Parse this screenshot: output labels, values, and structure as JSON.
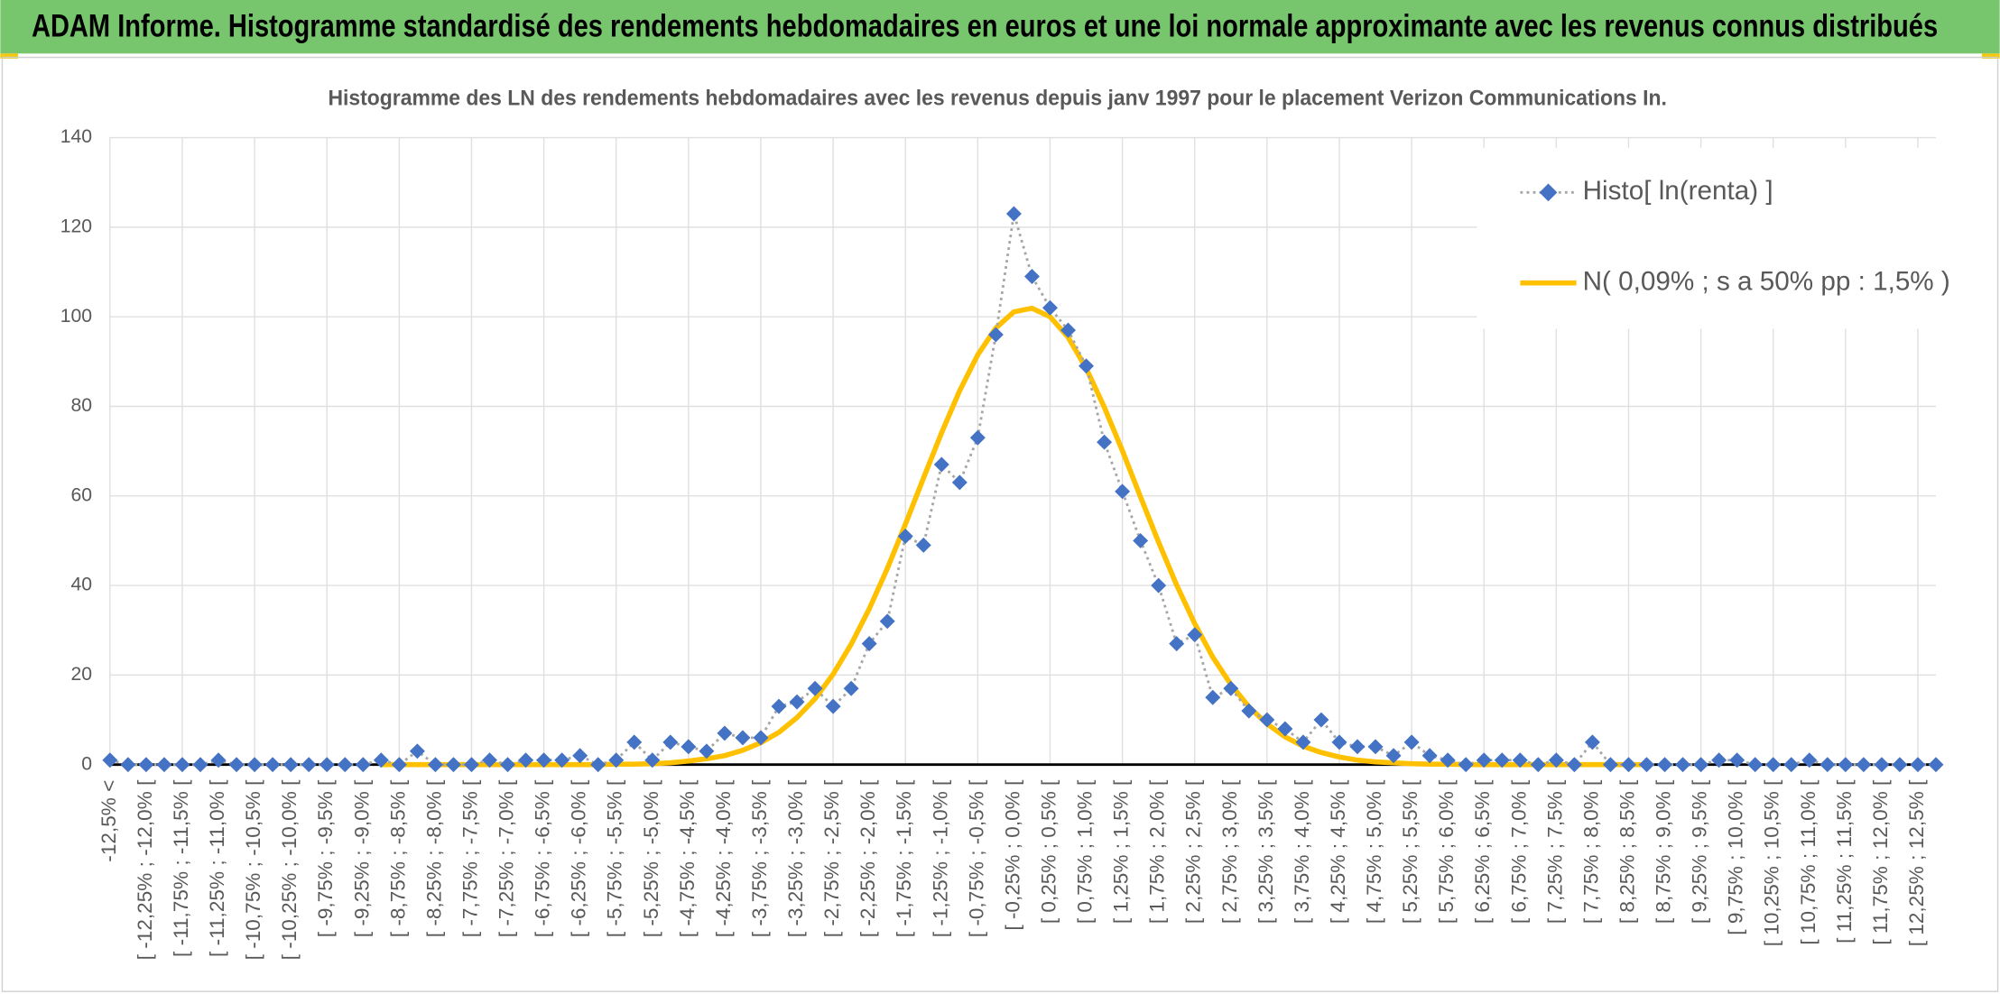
{
  "header": {
    "title": "ADAM Informe. Histogramme standardisé des rendements hebdomadaires en euros et une loi normale approximante avec les revenus connus distribués"
  },
  "chart_data": {
    "type": "line",
    "title": "Histogramme des LN des rendements hebdomadaires avec les revenus depuis janv 1997 pour le placement Verizon Communications In.",
    "categories": [
      "-12,5% <",
      null,
      "[ -12,25% ; -12,0% [",
      null,
      "[ -11,75% ; -11,5% [",
      null,
      "[ -11,25% ; -11,0% [",
      null,
      "[ -10,75% ; -10,5% [",
      null,
      "[ -10,25% ; -10,0% [",
      null,
      "[ -9,75% ; -9,5% [",
      null,
      "[ -9,25% ; -9,0% [",
      null,
      "[ -8,75% ; -8,5% [",
      null,
      "[ -8,25% ; -8,0% [",
      null,
      "[ -7,75% ; -7,5% [",
      null,
      "[ -7,25% ; -7,0% [",
      null,
      "[ -6,75% ; -6,5% [",
      null,
      "[ -6,25% ; -6,0% [",
      null,
      "[ -5,75% ; -5,5% [",
      null,
      "[ -5,25% ; -5,0% [",
      null,
      "[ -4,75% ; -4,5% [",
      null,
      "[ -4,25% ; -4,0% [",
      null,
      "[ -3,75% ; -3,5% [",
      null,
      "[ -3,25% ; -3,0% [",
      null,
      "[ -2,75% ; -2,5% [",
      null,
      "[ -2,25% ; -2,0% [",
      null,
      "[ -1,75% ; -1,5% [",
      null,
      "[ -1,25% ; -1,0% [",
      null,
      "[ -0,75% ; -0,5% [",
      null,
      "[ -0,25% ; 0,0% [",
      null,
      "[ 0,25% ; 0,5% [",
      null,
      "[ 0,75% ; 1,0% [",
      null,
      "[ 1,25% ; 1,5% [",
      null,
      "[ 1,75% ; 2,0% [",
      null,
      "[ 2,25% ; 2,5% [",
      null,
      "[ 2,75% ; 3,0% [",
      null,
      "[ 3,25% ; 3,5% [",
      null,
      "[ 3,75% ; 4,0% [",
      null,
      "[ 4,25% ; 4,5% [",
      null,
      "[ 4,75% ; 5,0% [",
      null,
      "[ 5,25% ; 5,5% [",
      null,
      "[ 5,75% ; 6,0% [",
      null,
      "[ 6,25% ; 6,5% [",
      null,
      "[ 6,75% ; 7,0% [",
      null,
      "[ 7,25% ; 7,5% [",
      null,
      "[ 7,75% ; 8,0% [",
      null,
      "[ 8,25% ; 8,5% [",
      null,
      "[ 8,75% ; 9,0% [",
      null,
      "[ 9,25% ; 9,5% [",
      null,
      "[ 9,75% ; 10,0% [",
      null,
      "[ 10,25% ; 10,5% [",
      null,
      "[ 10,75% ; 11,0% [",
      null,
      "[ 11,25% ; 11,5% [",
      null,
      "[ 11,75% ; 12,0% [",
      null,
      "[ 12,25% ; 12,5% [",
      null
    ],
    "series": [
      {
        "name": "Histo[ ln(renta) ]",
        "color": "#4472c4",
        "marker": "diamond",
        "line_style": "dotted",
        "line_color": "#a6a6a6",
        "values": [
          1,
          0,
          0,
          0,
          0,
          0,
          1,
          0,
          0,
          0,
          0,
          0,
          0,
          0,
          0,
          1,
          0,
          3,
          0,
          0,
          0,
          1,
          0,
          1,
          1,
          1,
          2,
          0,
          1,
          5,
          1,
          5,
          4,
          3,
          7,
          6,
          6,
          13,
          14,
          17,
          13,
          17,
          27,
          32,
          51,
          49,
          67,
          63,
          73,
          96,
          123,
          109,
          102,
          97,
          89,
          72,
          61,
          50,
          40,
          27,
          29,
          15,
          17,
          12,
          10,
          8,
          5,
          10,
          5,
          4,
          4,
          2,
          5,
          2,
          1,
          0,
          1,
          1,
          1,
          0,
          1,
          0,
          5,
          0,
          0,
          0,
          0,
          0,
          0,
          1,
          1,
          0,
          0,
          0,
          1,
          0,
          0,
          0,
          0,
          0,
          0,
          0
        ]
      },
      {
        "name": "N( 0,09% ; s a 50% pp : 1,5% )",
        "color": "#ffc000",
        "values": [
          null,
          null,
          null,
          null,
          null,
          null,
          null,
          null,
          null,
          null,
          null,
          null,
          null,
          null,
          null,
          0,
          0,
          0,
          0,
          0,
          0,
          0,
          0,
          0,
          0,
          0,
          0,
          0,
          0.1,
          0.1,
          0.2,
          0.4,
          0.8,
          1.3,
          2.0,
          3.2,
          4.9,
          7.2,
          10.5,
          14.7,
          20.2,
          26.9,
          34.8,
          43.8,
          53.7,
          64.0,
          74.1,
          83.5,
          91.5,
          97.5,
          101.1,
          101.9,
          100.0,
          95.4,
          88.5,
          79.8,
          70.1,
          59.8,
          49.7,
          40.1,
          31.5,
          24.0,
          17.9,
          12.9,
          9.1,
          6.2,
          4.1,
          2.7,
          1.7,
          1.0,
          0.6,
          0.4,
          0.2,
          0.1,
          0.1,
          0,
          0,
          0,
          0,
          0,
          0,
          0,
          0,
          0,
          0,
          0,
          null,
          null,
          null,
          null,
          null,
          null,
          null,
          null,
          null,
          null,
          null,
          null,
          null,
          null,
          null,
          null
        ]
      }
    ],
    "ylim": [
      0,
      140
    ],
    "yticks": [
      0,
      20,
      40,
      60,
      80,
      100,
      120,
      140
    ],
    "grid": true,
    "legend": "top-right"
  }
}
